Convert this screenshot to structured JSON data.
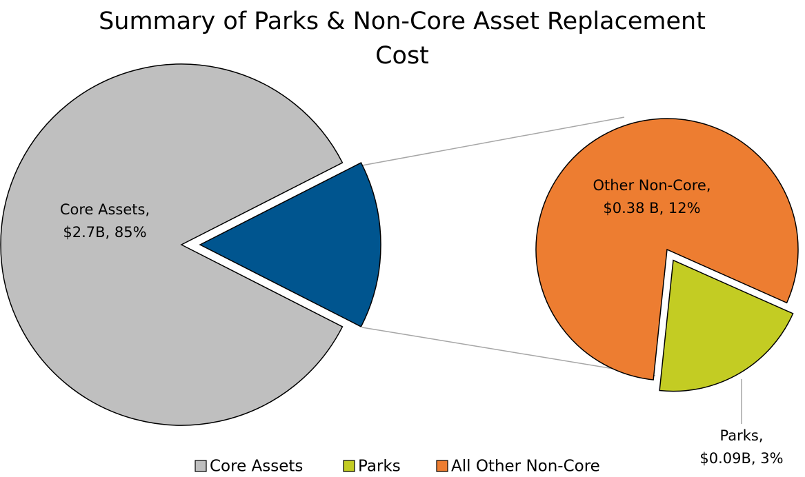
{
  "chart_data": {
    "type": "pie-of-pie",
    "title": "Summary of Parks & Non-Core Asset Replacement Cost",
    "categories": [
      "Core Assets",
      "Parks",
      "All Other Non-Core"
    ],
    "values": [
      85,
      3,
      12
    ],
    "value_labels": [
      [
        "Core Assets,",
        "$2.7B, 85%"
      ],
      [
        "Parks,",
        "$0.09B, 3%"
      ],
      [
        "Other Non-Core,",
        "$0.38 B, 12%"
      ]
    ],
    "colors": [
      "#bfbfbf",
      "#c3cc23",
      "#ed7d31"
    ],
    "combined_color": "#00558f",
    "legend": "bottom"
  }
}
